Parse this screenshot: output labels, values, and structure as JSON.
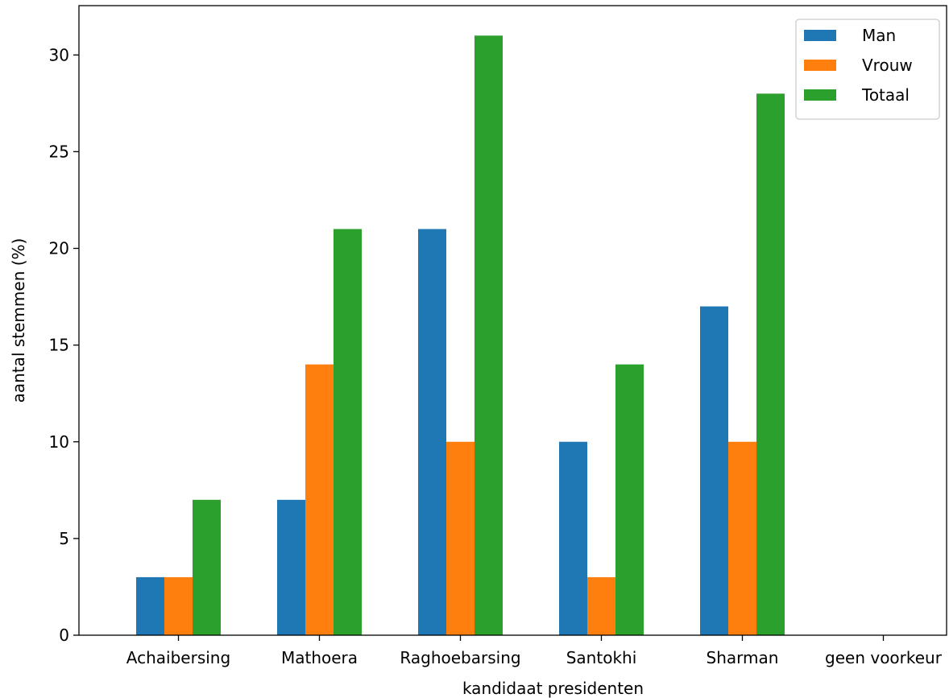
{
  "chart_data": {
    "type": "bar",
    "title": "",
    "xlabel": "kandidaat presidenten",
    "ylabel": "aantal stemmen (%)",
    "categories": [
      "Achaibersing",
      "Mathoera",
      "Raghoebarsing",
      "Santokhi",
      "Sharman",
      "geen voorkeur"
    ],
    "series": [
      {
        "name": "Man",
        "color": "#1f77b4",
        "values": [
          3,
          7,
          21,
          10,
          17,
          0
        ]
      },
      {
        "name": "Vrouw",
        "color": "#ff7f0e",
        "values": [
          3,
          14,
          10,
          3,
          10,
          0
        ]
      },
      {
        "name": "Totaal",
        "color": "#2ca02c",
        "values": [
          7,
          21,
          31,
          14,
          28,
          0
        ]
      }
    ],
    "ylim": [
      0,
      32.55
    ],
    "yticks": [
      "0",
      "5",
      "10",
      "15",
      "20",
      "25",
      "30"
    ],
    "grid": false,
    "legend_position": "top-right"
  }
}
